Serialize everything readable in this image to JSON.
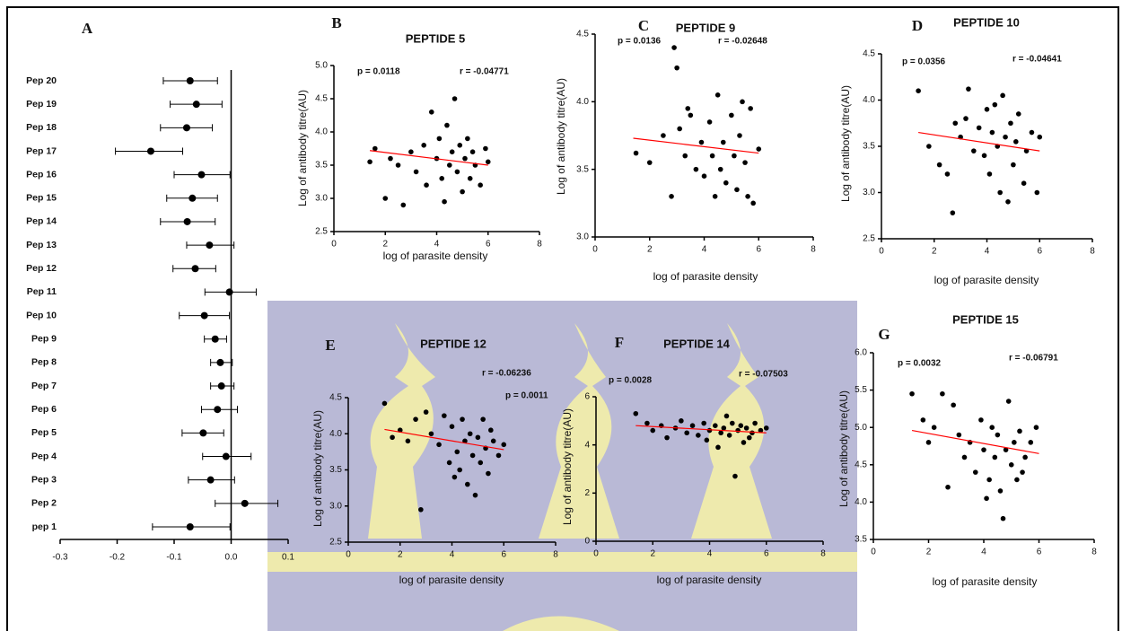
{
  "chart_data": [
    {
      "type": "forest",
      "panel": "A",
      "categories": [
        "Pep 20",
        "Pep 19",
        "Pep 18",
        "Pep 17",
        "Pep 16",
        "Pep 15",
        "Pep 14",
        "Pep 13",
        "Pep 12",
        "Pep 11",
        "Pep 10",
        "Pep 9",
        "Pep 8",
        "Pep 7",
        "Pep 6",
        "Pep 5",
        "Pep 4",
        "Pep 3",
        "Pep 2",
        "pep 1"
      ],
      "values": [
        -0.072,
        -0.061,
        -0.078,
        -0.141,
        -0.052,
        -0.068,
        -0.077,
        -0.038,
        -0.063,
        -0.003,
        -0.047,
        -0.028,
        -0.019,
        -0.017,
        -0.024,
        -0.049,
        -0.009,
        -0.036,
        0.024,
        -0.072
      ],
      "ci_low": [
        -0.119,
        -0.107,
        -0.124,
        -0.203,
        -0.1,
        -0.113,
        -0.124,
        -0.078,
        -0.102,
        -0.046,
        -0.091,
        -0.047,
        -0.036,
        -0.036,
        -0.052,
        -0.086,
        -0.05,
        -0.075,
        -0.028,
        -0.138
      ],
      "ci_high": [
        -0.024,
        -0.016,
        -0.033,
        -0.085,
        -0.002,
        -0.024,
        -0.028,
        0.005,
        -0.027,
        0.044,
        -0.003,
        -0.008,
        0.002,
        0.005,
        0.011,
        -0.013,
        0.035,
        0.006,
        0.082,
        -0.002
      ],
      "color": "#000000",
      "xlim": [
        -0.3,
        0.1
      ],
      "xticks": [
        -0.3,
        -0.2,
        -0.1,
        {
          "value": 0,
          "label": "0.0"
        },
        0.1
      ]
    },
    {
      "type": "scatter",
      "panel": "B",
      "title": "PEPTIDE 5",
      "x_label": "log of parasite density",
      "y_label": "Log of antibody titre(AU)",
      "p_text": "p = 0.0118",
      "r_text": "r =  -0.04771",
      "color": "#000000",
      "x": [
        1.4,
        1.6,
        2.0,
        2.2,
        2.5,
        2.7,
        3.0,
        3.2,
        3.5,
        3.6,
        3.8,
        4.0,
        4.1,
        4.2,
        4.4,
        4.5,
        4.6,
        4.7,
        4.8,
        4.9,
        5.0,
        5.1,
        5.2,
        5.3,
        5.4,
        5.5,
        5.7,
        5.9,
        6.0,
        4.3
      ],
      "y": [
        3.55,
        3.75,
        3.0,
        3.6,
        3.5,
        2.9,
        3.7,
        3.4,
        3.8,
        3.2,
        4.3,
        3.6,
        3.9,
        3.3,
        4.1,
        3.5,
        3.7,
        4.5,
        3.4,
        3.8,
        3.1,
        3.6,
        3.9,
        3.3,
        3.7,
        3.5,
        3.2,
        3.75,
        3.55,
        2.95
      ],
      "trendline": {
        "color": "#ff0000",
        "x": [
          1.4,
          6.0
        ],
        "y": [
          3.72,
          3.5
        ]
      },
      "xlim": [
        0,
        8
      ],
      "xticks": [
        0,
        2,
        4,
        6,
        8
      ],
      "ylim": [
        2.5,
        5.0
      ],
      "yticks": [
        2.5,
        {
          "value": 3,
          "label": "3.0"
        },
        3.5,
        {
          "value": 4,
          "label": "4.0"
        },
        4.5,
        {
          "value": 5,
          "label": "5.0"
        }
      ]
    },
    {
      "type": "scatter",
      "panel": "C",
      "title": "PEPTIDE 9",
      "x_label": "log of parasite density",
      "y_label": "Log of antibody titre(AU)",
      "p_text": "p = 0.0136",
      "r_text": "r =  -0.02648",
      "color": "#000000",
      "x": [
        1.5,
        2.0,
        2.5,
        2.8,
        2.9,
        3.0,
        3.1,
        3.3,
        3.5,
        3.7,
        3.9,
        4.0,
        4.2,
        4.3,
        4.5,
        4.6,
        4.7,
        4.8,
        5.0,
        5.1,
        5.2,
        5.3,
        5.5,
        5.6,
        5.7,
        5.8,
        6.0,
        4.4,
        3.4,
        5.4
      ],
      "y": [
        3.62,
        3.55,
        3.75,
        3.3,
        4.4,
        4.25,
        3.8,
        3.6,
        3.9,
        3.5,
        3.7,
        3.45,
        3.85,
        3.6,
        4.05,
        3.5,
        3.7,
        3.4,
        3.9,
        3.6,
        3.35,
        3.75,
        3.55,
        3.3,
        3.95,
        3.25,
        3.65,
        3.3,
        3.95,
        4.0
      ],
      "trendline": {
        "color": "#ff0000",
        "x": [
          1.4,
          6.0
        ],
        "y": [
          3.73,
          3.62
        ]
      },
      "xlim": [
        0,
        8
      ],
      "xticks": [
        0,
        2,
        4,
        6,
        8
      ],
      "ylim": [
        3.0,
        4.5
      ],
      "yticks": [
        {
          "value": 3,
          "label": "3.0"
        },
        3.5,
        {
          "value": 4,
          "label": "4.0"
        },
        4.5
      ]
    },
    {
      "type": "scatter",
      "panel": "D",
      "title": "PEPTIDE 10",
      "x_label": "log of parasite density",
      "y_label": "Log of antibody titre(AU)",
      "p_text": "p = 0.0356",
      "r_text": "r =  -0.04641",
      "color": "#000000",
      "x": [
        1.4,
        1.8,
        2.2,
        2.5,
        2.7,
        2.8,
        3.0,
        3.2,
        3.3,
        3.5,
        3.7,
        3.9,
        4.0,
        4.1,
        4.2,
        4.3,
        4.4,
        4.5,
        4.6,
        4.7,
        4.8,
        4.9,
        5.0,
        5.1,
        5.2,
        5.4,
        5.5,
        5.7,
        5.9,
        6.0
      ],
      "y": [
        4.1,
        3.5,
        3.3,
        3.2,
        2.78,
        3.75,
        3.6,
        3.8,
        4.12,
        3.45,
        3.7,
        3.4,
        3.9,
        3.2,
        3.65,
        3.95,
        3.5,
        3.0,
        4.05,
        3.6,
        2.9,
        3.75,
        3.3,
        3.55,
        3.85,
        3.1,
        3.45,
        3.65,
        3.0,
        3.6
      ],
      "trendline": {
        "color": "#ff0000",
        "x": [
          1.4,
          6.0
        ],
        "y": [
          3.65,
          3.45
        ]
      },
      "xlim": [
        0,
        8
      ],
      "xticks": [
        0,
        2,
        4,
        6,
        8
      ],
      "ylim": [
        2.5,
        4.5
      ],
      "yticks": [
        2.5,
        {
          "value": 3,
          "label": "3.0"
        },
        3.5,
        {
          "value": 4,
          "label": "4.0"
        },
        4.5
      ]
    },
    {
      "type": "scatter",
      "panel": "E",
      "title": "PEPTIDE 12",
      "x_label": "log of parasite density",
      "y_label": "Log of antibody titre(AU)",
      "p_text": "p = 0.0011",
      "r_text": "r =  -0.06236",
      "color": "#000000",
      "x": [
        1.4,
        1.7,
        2.0,
        2.3,
        2.6,
        2.8,
        3.0,
        3.2,
        3.5,
        3.7,
        3.9,
        4.0,
        4.2,
        4.3,
        4.4,
        4.5,
        4.6,
        4.7,
        4.8,
        4.9,
        5.0,
        5.1,
        5.2,
        5.3,
        5.4,
        5.6,
        5.8,
        6.0,
        4.1,
        5.5
      ],
      "y": [
        4.42,
        3.95,
        4.05,
        3.9,
        4.2,
        2.95,
        4.3,
        4.0,
        3.85,
        4.25,
        3.6,
        4.1,
        3.75,
        3.5,
        4.2,
        3.9,
        3.3,
        4.0,
        3.7,
        3.15,
        3.95,
        3.6,
        4.2,
        3.8,
        3.45,
        3.9,
        3.7,
        3.85,
        3.4,
        4.05
      ],
      "trendline": {
        "color": "#ff0000",
        "x": [
          1.4,
          6.0
        ],
        "y": [
          4.06,
          3.78
        ]
      },
      "xlim": [
        0,
        8
      ],
      "xticks": [
        0,
        2,
        4,
        6,
        8
      ],
      "ylim": [
        2.5,
        4.5
      ],
      "yticks": [
        2.5,
        {
          "value": 3,
          "label": "3.0"
        },
        3.5,
        {
          "value": 4,
          "label": "4.0"
        },
        4.5
      ]
    },
    {
      "type": "scatter",
      "panel": "F",
      "title": "PEPTIDE 14",
      "x_label": "log of parasite density",
      "y_label": "Log of antibody titre(AU)",
      "p_text": "p = 0.0028",
      "r_text": "r =  -0.07503",
      "color": "#000000",
      "x": [
        1.4,
        1.8,
        2.0,
        2.3,
        2.5,
        2.8,
        3.0,
        3.2,
        3.4,
        3.6,
        3.8,
        4.0,
        4.2,
        4.3,
        4.5,
        4.6,
        4.7,
        4.8,
        4.9,
        5.0,
        5.1,
        5.2,
        5.3,
        5.5,
        5.6,
        5.8,
        6.0,
        4.4,
        3.9,
        5.4
      ],
      "y": [
        5.3,
        4.9,
        4.6,
        4.8,
        4.3,
        4.7,
        5.0,
        4.5,
        4.8,
        4.4,
        4.9,
        4.6,
        4.8,
        3.9,
        4.7,
        5.2,
        4.4,
        4.9,
        2.7,
        4.6,
        4.8,
        4.1,
        4.7,
        4.5,
        4.9,
        4.6,
        4.7,
        4.5,
        4.2,
        4.3
      ],
      "trendline": {
        "color": "#ff0000",
        "x": [
          1.4,
          6.0
        ],
        "y": [
          4.8,
          4.5
        ]
      },
      "xlim": [
        0,
        8
      ],
      "xticks": [
        0,
        2,
        4,
        6,
        8
      ],
      "ylim": [
        0,
        6
      ],
      "yticks": [
        0,
        2,
        4,
        6
      ]
    },
    {
      "type": "scatter",
      "panel": "G",
      "title": "PEPTIDE 15",
      "x_label": "log of parasite density",
      "y_label": "Log of antibody titre(AU)",
      "p_text": "p = 0.0032",
      "r_text": "r =  -0.06791",
      "color": "#000000",
      "x": [
        1.4,
        1.8,
        2.0,
        2.2,
        2.5,
        2.7,
        2.9,
        3.1,
        3.3,
        3.5,
        3.7,
        3.9,
        4.0,
        4.2,
        4.3,
        4.4,
        4.5,
        4.6,
        4.7,
        4.8,
        4.9,
        5.0,
        5.1,
        5.2,
        5.3,
        5.5,
        5.7,
        5.9,
        4.1,
        5.4
      ],
      "y": [
        5.45,
        5.1,
        4.8,
        5.0,
        5.45,
        4.2,
        5.3,
        4.9,
        4.6,
        4.8,
        4.4,
        5.1,
        4.7,
        4.3,
        5.0,
        4.6,
        4.9,
        4.15,
        3.78,
        4.7,
        5.35,
        4.5,
        4.8,
        4.3,
        4.95,
        4.6,
        4.8,
        5.0,
        4.05,
        4.4
      ],
      "trendline": {
        "color": "#ff0000",
        "x": [
          1.4,
          6.0
        ],
        "y": [
          4.96,
          4.65
        ]
      },
      "xlim": [
        0,
        8
      ],
      "xticks": [
        0,
        2,
        4,
        6,
        8
      ],
      "ylim": [
        3.5,
        6.0
      ],
      "yticks": [
        3.5,
        {
          "value": 4,
          "label": "4.0"
        },
        4.5,
        {
          "value": 5,
          "label": "5.0"
        },
        5.5,
        {
          "value": 6,
          "label": "6.0"
        }
      ]
    }
  ]
}
